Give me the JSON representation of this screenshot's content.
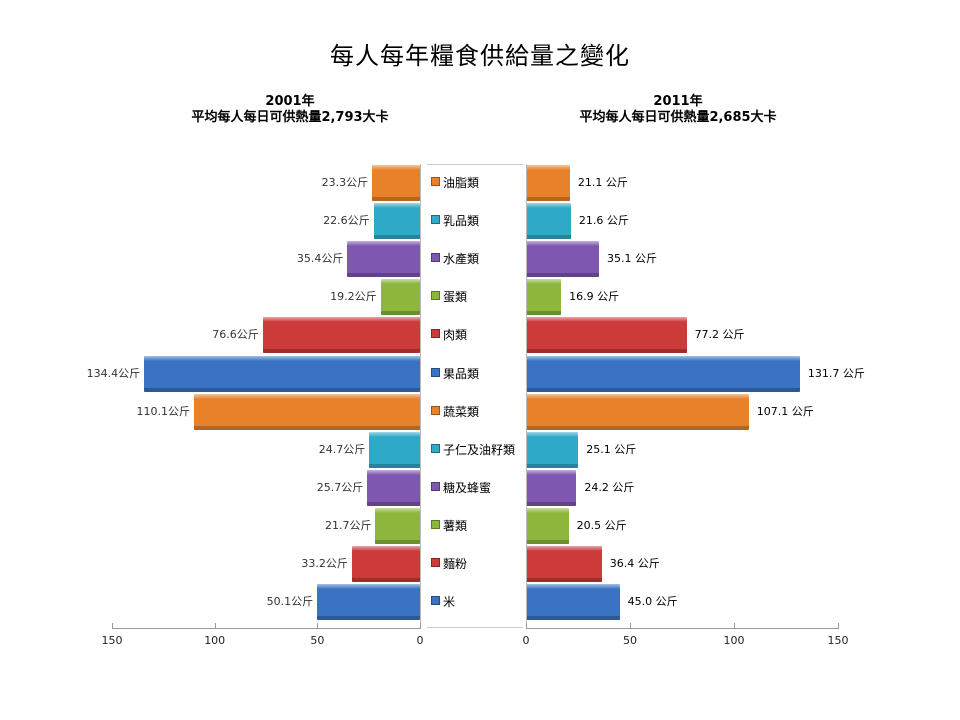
{
  "title": "每人每年糧食供給量之變化",
  "left_panel": {
    "year": "2001年",
    "subtitle": "平均每人每日可供熱量2,793大卡"
  },
  "right_panel": {
    "year": "2011年",
    "subtitle": "平均每人每日可供熱量2,685大卡"
  },
  "unit": "公斤",
  "colors": {
    "orange": "#E8822A",
    "teal": "#2FA9C8",
    "purple": "#7E57B0",
    "green": "#8CB63C",
    "red": "#CC3A3A",
    "blue": "#3A73C4"
  },
  "legend": [
    {
      "label": "油脂類",
      "color": "#E8822A"
    },
    {
      "label": "乳品類",
      "color": "#2FA9C8"
    },
    {
      "label": "水產類",
      "color": "#7E57B0"
    },
    {
      "label": "蛋類",
      "color": "#8CB63C"
    },
    {
      "label": "肉類",
      "color": "#CC3A3A"
    },
    {
      "label": "果品類",
      "color": "#3A73C4"
    },
    {
      "label": "蔬菜類",
      "color": "#E8822A"
    },
    {
      "label": "子仁及油籽類",
      "color": "#2FA9C8"
    },
    {
      "label": "糖及蜂蜜",
      "color": "#7E57B0"
    },
    {
      "label": "薯類",
      "color": "#8CB63C"
    },
    {
      "label": "麵粉",
      "color": "#CC3A3A"
    },
    {
      "label": "米",
      "color": "#3A73C4"
    }
  ],
  "left_labels": [
    "23.3公斤",
    "22.6公斤",
    "35.4公斤",
    "19.2公斤",
    "76.6公斤",
    "134.4公斤",
    "110.1公斤",
    "24.7公斤",
    "25.7公斤",
    "21.7公斤",
    "33.2公斤",
    "50.1公斤"
  ],
  "right_labels": [
    "21.1 公斤",
    "21.6 公斤",
    "35.1 公斤",
    "16.9 公斤",
    "77.2 公斤",
    "131.7 公斤",
    "107.1 公斤",
    "25.1 公斤",
    "24.2 公斤",
    "20.5 公斤",
    "36.4 公斤",
    "45.0 公斤"
  ],
  "left_axis_ticks": [
    "150",
    "100",
    "50",
    "0"
  ],
  "right_axis_ticks": [
    "0",
    "50",
    "100",
    "150"
  ],
  "chart_data": {
    "type": "bar",
    "orientation": "horizontal",
    "layout": "butterfly (back-to-back)",
    "title": "每人每年糧食供給量之變化",
    "categories": [
      "油脂類",
      "乳品類",
      "水產類",
      "蛋類",
      "肉類",
      "果品類",
      "蔬菜類",
      "子仁及油籽類",
      "糖及蜂蜜",
      "薯類",
      "麵粉",
      "米"
    ],
    "series": [
      {
        "name": "2001年",
        "subtitle": "平均每人每日可供熱量2,793大卡",
        "values": [
          23.3,
          22.6,
          35.4,
          19.2,
          76.6,
          134.4,
          110.1,
          24.7,
          25.7,
          21.7,
          33.2,
          50.1
        ]
      },
      {
        "name": "2011年",
        "subtitle": "平均每人每日可供熱量2,685大卡",
        "values": [
          21.1,
          21.6,
          35.1,
          16.9,
          77.2,
          131.7,
          107.1,
          25.1,
          24.2,
          20.5,
          36.4,
          45.0
        ]
      }
    ],
    "bar_colors": [
      "#E8822A",
      "#2FA9C8",
      "#7E57B0",
      "#8CB63C",
      "#CC3A3A",
      "#3A73C4",
      "#E8822A",
      "#2FA9C8",
      "#7E57B0",
      "#8CB63C",
      "#CC3A3A",
      "#3A73C4"
    ],
    "unit": "公斤",
    "xlabel": "",
    "ylabel": "",
    "xlim_left": [
      150,
      0
    ],
    "xlim_right": [
      0,
      150
    ],
    "x_ticks": [
      0,
      50,
      100,
      150
    ],
    "grid": false,
    "legend_position": "center (between panels)"
  }
}
